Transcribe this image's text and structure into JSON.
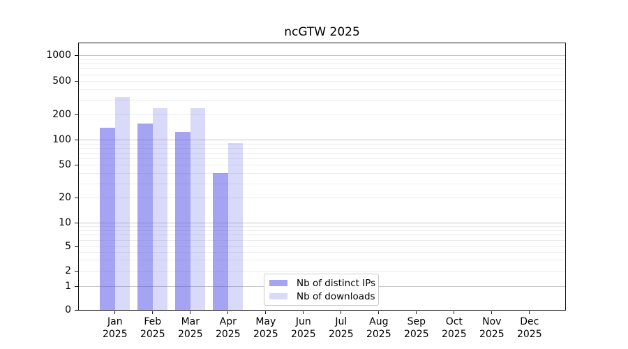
{
  "title": "ncGTW 2025",
  "chart_data": {
    "type": "bar",
    "title": "ncGTW 2025",
    "categories": [
      "Jan 2025",
      "Feb 2025",
      "Mar 2025",
      "Apr 2025",
      "May 2025",
      "Jun 2025",
      "Jul 2025",
      "Aug 2025",
      "Sep 2025",
      "Oct 2025",
      "Nov 2025",
      "Dec 2025"
    ],
    "series": [
      {
        "name": "Nb of distinct IPs",
        "slug": "distinct-ips",
        "color": "#5050e6",
        "alpha": 0.52,
        "values": [
          140,
          155,
          125,
          40,
          null,
          null,
          null,
          null,
          null,
          null,
          null,
          null
        ]
      },
      {
        "name": "Nb of downloads",
        "slug": "downloads",
        "color": "#5050e6",
        "alpha": 0.22,
        "values": [
          320,
          235,
          235,
          92,
          null,
          null,
          null,
          null,
          null,
          null,
          null,
          null
        ]
      }
    ],
    "xlabel": "",
    "ylabel": "",
    "yscale": "symlog-asinh (log above 1, linear 0-1)",
    "yticks": [
      0,
      1,
      2,
      5,
      10,
      20,
      50,
      100,
      200,
      500,
      1000
    ],
    "ylim": [
      0,
      1400
    ],
    "grid": "horizontal, major gridlines at powers of 10, faint minor gridlines between",
    "legend_position": "lower center inside plot"
  },
  "colors": {
    "bar_distinct_ips_effective": "#a2a2f2",
    "bar_downloads_effective": "#d8d8f9",
    "grid_major": "#c6c6c6",
    "grid_minor": "#ececec",
    "spine": "#161616",
    "legend_border": "#cbcbcb",
    "background": "#ffffff",
    "text": "#000000"
  }
}
